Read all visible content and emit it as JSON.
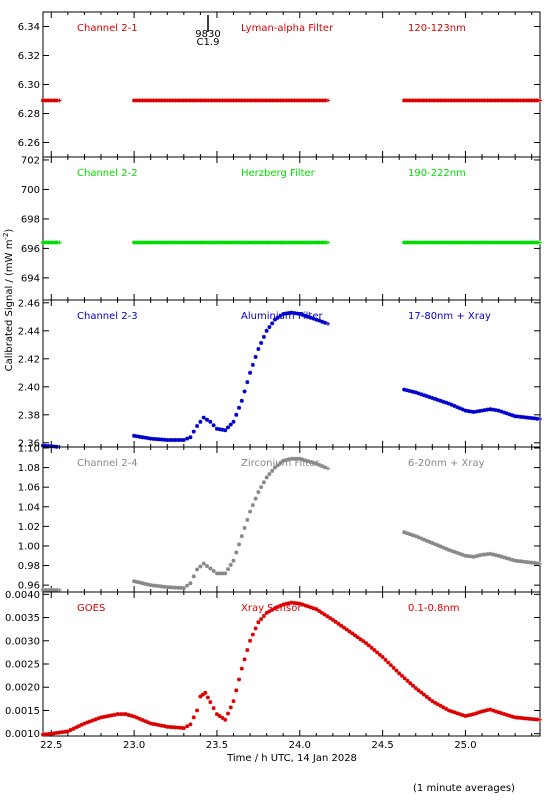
{
  "figure": {
    "ylabel": "Calibrated Signal / (mW m",
    "ylabel_sup": "-2",
    "ylabel_close": ")",
    "xlabel": "Time / h UTC, 14 Jan 2028",
    "footnote": "(1 minute averages)",
    "flare_marker": {
      "time_label": "9830",
      "class_label": "C1.9",
      "x": 23.42
    }
  },
  "colors": {
    "red": "#dd0000",
    "green": "#00dd00",
    "blue": "#0000cc",
    "grey": "#888888",
    "axis": "#000000"
  },
  "chart_data": [
    {
      "id": "ch21",
      "type": "scatter",
      "color": "red",
      "labels": [
        "Channel 2-1",
        "Lyman-alpha Filter",
        "120-123nm"
      ],
      "ylim": [
        6.25,
        6.35
      ],
      "yticks": [
        "6.34",
        "6.32",
        "6.30",
        "6.28",
        "6.26"
      ],
      "yticks_values": [
        6.34,
        6.32,
        6.3,
        6.28,
        6.26
      ],
      "xlim": [
        22.45,
        25.45
      ],
      "segments": [
        {
          "x": [
            22.45,
            22.55
          ],
          "y": [
            6.289,
            6.289
          ]
        },
        {
          "x": [
            23.0,
            23.4,
            23.8,
            24.17
          ],
          "y": [
            6.289,
            6.289,
            6.289,
            6.289
          ]
        },
        {
          "x": [
            24.63,
            25.0,
            25.45
          ],
          "y": [
            6.289,
            6.289,
            6.289
          ]
        }
      ]
    },
    {
      "id": "ch22",
      "type": "scatter",
      "color": "green",
      "labels": [
        "Channel 2-2",
        "Herzberg Filter",
        "190-222nm"
      ],
      "ylim": [
        692.5,
        702.2
      ],
      "yticks": [
        "702",
        "700",
        "698",
        "696",
        "694"
      ],
      "yticks_values": [
        702,
        700,
        698,
        696,
        694
      ],
      "xlim": [
        22.45,
        25.45
      ],
      "segments": [
        {
          "x": [
            22.45,
            22.55
          ],
          "y": [
            696.4,
            696.4
          ]
        },
        {
          "x": [
            23.0,
            23.4,
            23.8,
            24.17
          ],
          "y": [
            696.4,
            696.4,
            696.4,
            696.4
          ]
        },
        {
          "x": [
            24.63,
            25.0,
            25.45
          ],
          "y": [
            696.4,
            696.4,
            696.4
          ]
        }
      ]
    },
    {
      "id": "ch23",
      "type": "scatter",
      "color": "blue",
      "labels": [
        "Channel 2-3",
        "Aluminium Filter",
        "17-80nm + Xray"
      ],
      "ylim": [
        2.357,
        2.462
      ],
      "yticks": [
        "2.46",
        "2.44",
        "2.42",
        "2.40",
        "2.38",
        "2.36"
      ],
      "yticks_values": [
        2.46,
        2.44,
        2.42,
        2.4,
        2.38,
        2.36
      ],
      "xlim": [
        22.45,
        25.45
      ],
      "segments": [
        {
          "x": [
            22.45,
            22.55
          ],
          "y": [
            2.358,
            2.357
          ]
        },
        {
          "x": [
            23.0,
            23.1,
            23.2,
            23.3,
            23.34,
            23.38,
            23.42,
            23.46,
            23.5,
            23.55,
            23.6,
            23.65,
            23.7,
            23.75,
            23.8,
            23.85,
            23.9,
            23.95,
            24.0,
            24.1,
            24.17
          ],
          "y": [
            2.365,
            2.363,
            2.362,
            2.362,
            2.364,
            2.372,
            2.378,
            2.375,
            2.37,
            2.369,
            2.375,
            2.39,
            2.41,
            2.427,
            2.44,
            2.448,
            2.452,
            2.453,
            2.452,
            2.448,
            2.445
          ]
        },
        {
          "x": [
            24.63,
            24.7,
            24.8,
            24.9,
            25.0,
            25.05,
            25.1,
            25.15,
            25.2,
            25.3,
            25.45
          ],
          "y": [
            2.398,
            2.396,
            2.392,
            2.388,
            2.383,
            2.382,
            2.383,
            2.384,
            2.383,
            2.379,
            2.377
          ]
        }
      ]
    },
    {
      "id": "ch24",
      "type": "scatter",
      "color": "grey",
      "labels": [
        "Channel 2-4",
        "Zirconium Filter",
        "6-20nm + Xray"
      ],
      "ylim": [
        0.953,
        1.101
      ],
      "yticks": [
        "1.10",
        "1.08",
        "1.06",
        "1.04",
        "1.02",
        "1.00",
        "0.98",
        "0.96"
      ],
      "yticks_values": [
        1.1,
        1.08,
        1.06,
        1.04,
        1.02,
        1.0,
        0.98,
        0.96
      ],
      "xlim": [
        22.45,
        25.45
      ],
      "segments": [
        {
          "x": [
            22.45,
            22.55
          ],
          "y": [
            0.955,
            0.955
          ]
        },
        {
          "x": [
            23.0,
            23.1,
            23.2,
            23.3,
            23.34,
            23.38,
            23.42,
            23.46,
            23.5,
            23.55,
            23.6,
            23.65,
            23.7,
            23.75,
            23.8,
            23.85,
            23.9,
            23.95,
            24.0,
            24.1,
            24.17
          ],
          "y": [
            0.964,
            0.96,
            0.958,
            0.957,
            0.962,
            0.976,
            0.982,
            0.977,
            0.972,
            0.972,
            0.985,
            1.01,
            1.035,
            1.055,
            1.07,
            1.08,
            1.087,
            1.089,
            1.089,
            1.084,
            1.079
          ]
        },
        {
          "x": [
            24.63,
            24.7,
            24.8,
            24.9,
            25.0,
            25.05,
            25.1,
            25.15,
            25.2,
            25.3,
            25.45
          ],
          "y": [
            1.014,
            1.01,
            1.003,
            0.996,
            0.99,
            0.989,
            0.991,
            0.992,
            0.99,
            0.985,
            0.982
          ]
        }
      ]
    },
    {
      "id": "goes",
      "type": "scatter",
      "color": "red",
      "labels": [
        "GOES",
        "Xray Sensor",
        "0.1-0.8nm"
      ],
      "ylim": [
        0.00095,
        0.00405
      ],
      "yticks": [
        "0.0040",
        "0.0035",
        "0.0030",
        "0.0025",
        "0.0020",
        "0.0015",
        "0.0010"
      ],
      "yticks_values": [
        0.004,
        0.0035,
        0.003,
        0.0025,
        0.002,
        0.0015,
        0.001
      ],
      "xlim": [
        22.45,
        25.45
      ],
      "segments": [
        {
          "x": [
            22.45,
            22.5,
            22.6,
            22.7,
            22.8,
            22.9,
            22.95,
            23.0,
            23.1,
            23.2,
            23.3,
            23.34,
            23.38,
            23.4,
            23.43,
            23.46,
            23.5,
            23.55,
            23.6,
            23.65,
            23.7,
            23.75,
            23.8,
            23.85,
            23.9,
            23.95,
            24.0,
            24.1,
            24.2,
            24.3,
            24.4,
            24.5,
            24.6,
            24.7,
            24.8,
            24.9,
            25.0,
            25.05,
            25.1,
            25.15,
            25.2,
            25.3,
            25.45
          ],
          "y": [
            0.00098,
            0.001,
            0.00105,
            0.00122,
            0.00135,
            0.00142,
            0.00142,
            0.00137,
            0.00122,
            0.00115,
            0.00112,
            0.0012,
            0.0015,
            0.0018,
            0.00188,
            0.00168,
            0.00142,
            0.0013,
            0.0017,
            0.0024,
            0.003,
            0.0034,
            0.0036,
            0.0037,
            0.00378,
            0.00382,
            0.0038,
            0.00368,
            0.00345,
            0.0032,
            0.00295,
            0.00265,
            0.0023,
            0.00198,
            0.0017,
            0.0015,
            0.00138,
            0.00142,
            0.00148,
            0.00152,
            0.00146,
            0.00135,
            0.0013
          ]
        }
      ]
    }
  ],
  "xaxis": {
    "ticks": [
      "22.5",
      "23.0",
      "23.5",
      "24.0",
      "24.5",
      "25.0"
    ],
    "ticks_values": [
      22.5,
      23.0,
      23.5,
      24.0,
      24.5,
      25.0
    ],
    "range": [
      22.45,
      25.45
    ]
  }
}
